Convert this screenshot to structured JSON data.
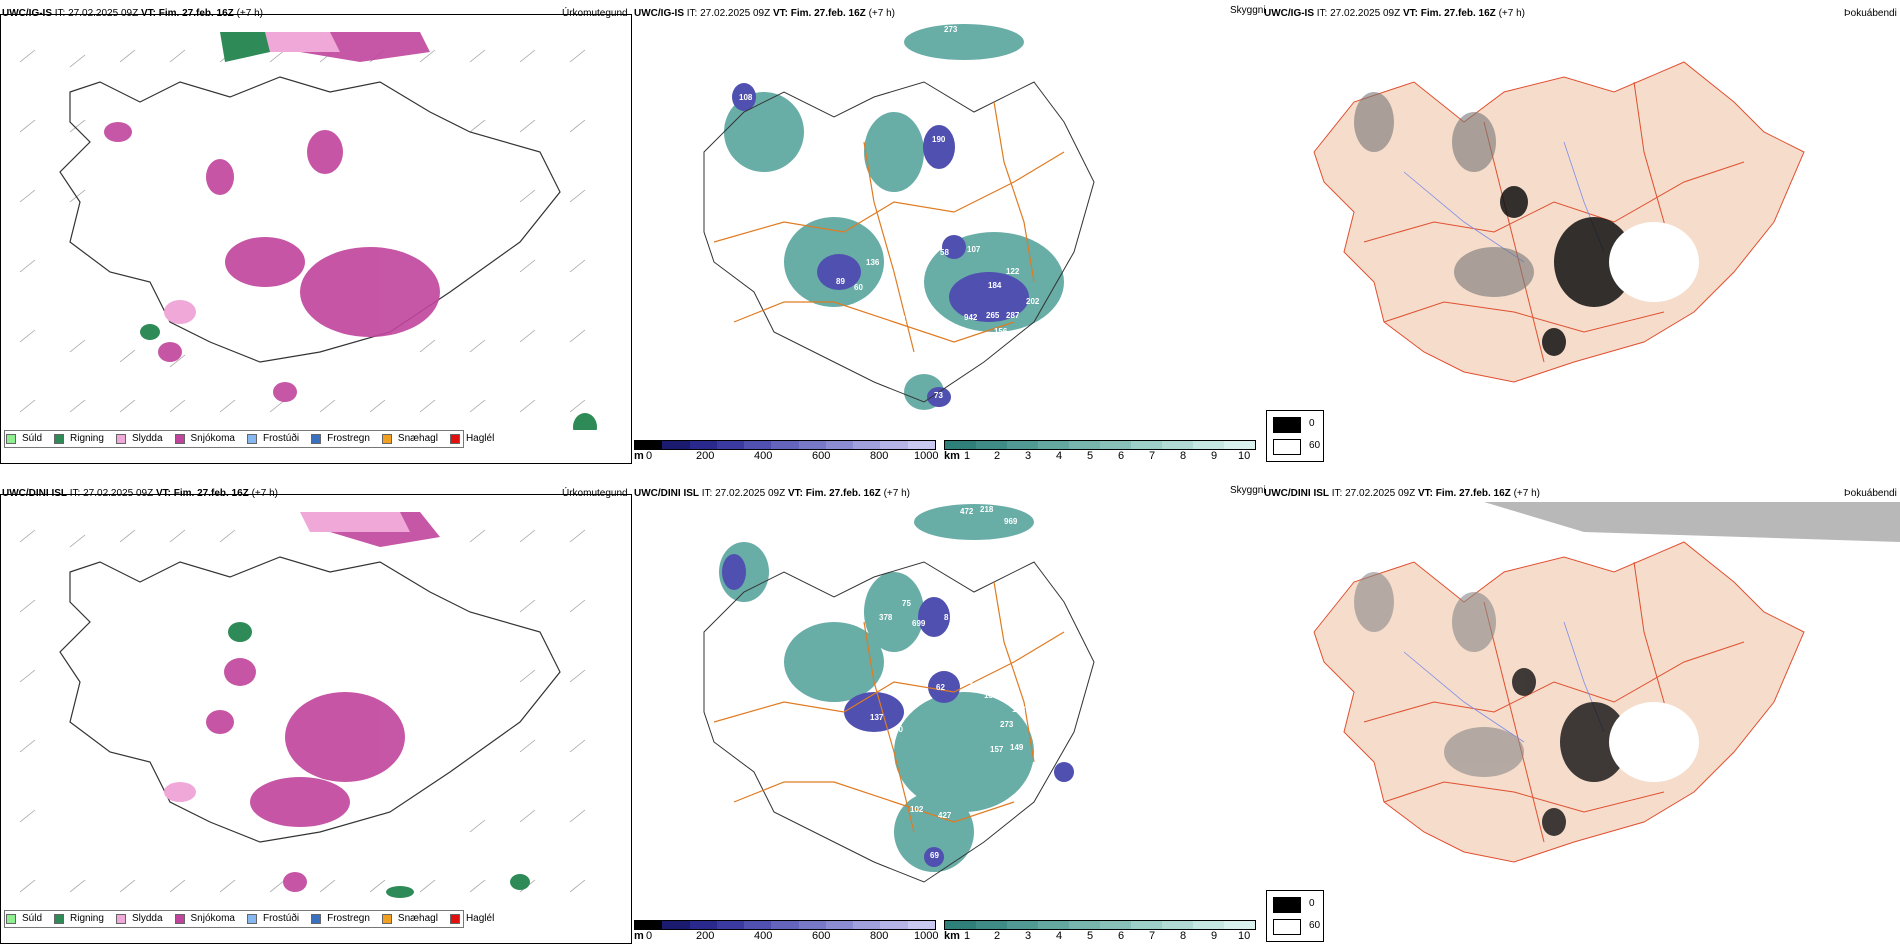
{
  "rows": [
    {
      "model": "UWC/IG-IS",
      "it_label": "IT:",
      "it_value": "27.02.2025 09Z",
      "vt_label": "VT:",
      "vt_value": "Fim. 27.feb. 16Z",
      "lead": "(+7 h)",
      "panel1_right": "Úrkomutegund",
      "panel2_right": "Skyggni",
      "panel3_right": "Þokuábendi"
    },
    {
      "model": "UWC/DINI ISL",
      "it_label": "IT:",
      "it_value": "27.02.2025 09Z",
      "vt_label": "VT:",
      "vt_value": "Fim. 27.feb. 16Z",
      "lead": "(+7 h)",
      "panel1_right": "Úrkomutegund",
      "panel2_right": "Skyggni",
      "panel3_right": "Þokuábendi"
    }
  ],
  "precip_legend": [
    {
      "label": "Súld",
      "color": "#90ee90"
    },
    {
      "label": "Rigning",
      "color": "#2e8b57"
    },
    {
      "label": "Slydda",
      "color": "#f0a8d8"
    },
    {
      "label": "Snjókoma",
      "color": "#c0449c"
    },
    {
      "label": "Frostúði",
      "color": "#87b7f0"
    },
    {
      "label": "Frostregn",
      "color": "#3a70c0"
    },
    {
      "label": "Snæhagl",
      "color": "#f0a020"
    },
    {
      "label": "Haglél",
      "color": "#e01010"
    }
  ],
  "visibility_scale_m": {
    "unit": "m",
    "ticks": [
      "0",
      "200",
      "400",
      "600",
      "800",
      "1000"
    ],
    "colors": [
      "#000000",
      "#1a1a6e",
      "#2a2a8e",
      "#3a3aa0",
      "#5050b0",
      "#6464bc",
      "#7878c8",
      "#8c8cd2",
      "#a0a0dc",
      "#b4b4e6",
      "#c8c8f0"
    ]
  },
  "visibility_scale_km": {
    "unit": "km",
    "ticks": [
      "1",
      "2",
      "3",
      "4",
      "5",
      "6",
      "7",
      "8",
      "9",
      "10"
    ],
    "colors": [
      "#2f7f7a",
      "#3f8c86",
      "#519a93",
      "#63a7a0",
      "#76b4ad",
      "#89c1ba",
      "#9dcec7",
      "#b1dad4",
      "#c5e6e1",
      "#d9f1ee"
    ]
  },
  "fog_legend": [
    {
      "label": "0",
      "color": "#000000"
    },
    {
      "label": "60",
      "color": "#ffffff"
    }
  ],
  "vis_labels_top": [
    "273",
    "108",
    "190",
    "198",
    "151",
    "58",
    "107",
    "122",
    "184",
    "202",
    "942",
    "265",
    "287",
    "156",
    "113",
    "136",
    "89",
    "60",
    "165",
    "154",
    "108",
    "73",
    "18"
  ],
  "vis_labels_bottom": [
    "472",
    "218",
    "969",
    "75",
    "378",
    "699",
    "8",
    "62",
    "10",
    "157",
    "183",
    "273",
    "149",
    "157",
    "137",
    "60",
    "61",
    "427",
    "102",
    "69",
    "36"
  ]
}
